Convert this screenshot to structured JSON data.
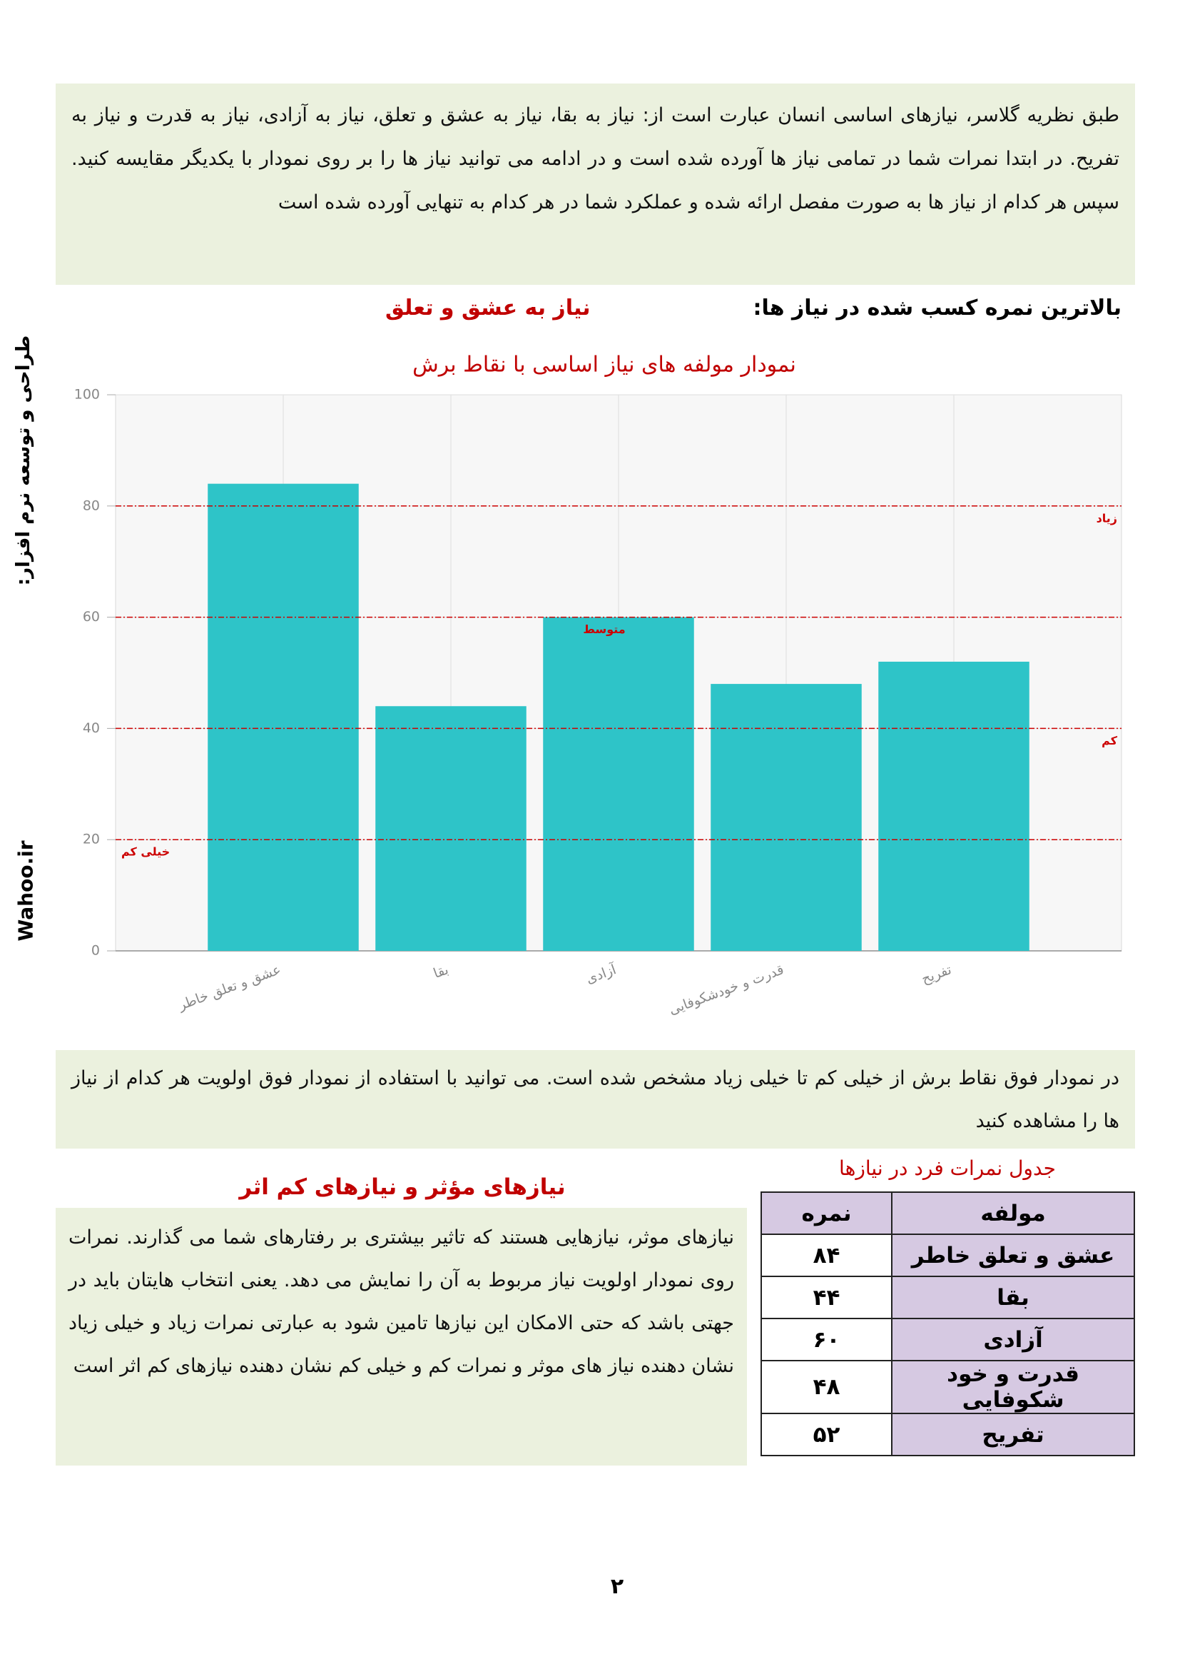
{
  "intro": "طبق نظریه گلاسر، نیازهای اساسی انسان عبارت است از: نیاز به بقا، نیاز به عشق و تعلق، نیاز به آزادی، نیاز به قدرت و نیاز به تفریح. در ابتدا نمرات شما در تمامی نیاز ها آورده شده است و در ادامه می توانید نیاز ها را بر روی نمودار با یکدیگر مقایسه کنید. سپس هر کدام از نیاز ها به صورت مفصل ارائه شده و عملکرد شما در هر کدام به تنهایی آورده شده است",
  "highest": {
    "label": "بالاترین نمره کسب شده در نیاز ها:",
    "value": "نیاز به عشق و تعلق"
  },
  "side": {
    "text": "طراحی و توسعه نرم افزار:",
    "site": "Wahoo.ir"
  },
  "chart_data": {
    "type": "bar",
    "title": "نمودار مولفه های نیاز اساسی با نقاط برش",
    "categories": [
      "عشق و تعلق خاطر",
      "بقا",
      "آزادی",
      "قدرت و خودشکوفایی",
      "تفریح"
    ],
    "values": [
      84,
      44,
      60,
      48,
      52
    ],
    "color": "#2ec4c8",
    "ylim": [
      0,
      100
    ],
    "yticks": [
      0,
      20,
      40,
      60,
      80,
      100
    ],
    "grid": true,
    "thresholds": [
      {
        "value": 20,
        "label": "خیلی کم"
      },
      {
        "value": 40,
        "label": "کم"
      },
      {
        "value": 60,
        "label": "متوسط"
      },
      {
        "value": 80,
        "label": "زیاد"
      }
    ],
    "threshold_color": "#cc0000"
  },
  "note": "در نمودار فوق نقاط برش از خیلی کم تا خیلی زیاد مشخص شده است. می توانید با استفاده از نمودار فوق اولویت هر کدام از نیاز ها را مشاهده کنید",
  "effective": {
    "title": "نیازهای مؤثر و نیازهای کم اثر",
    "text": "نیازهای موثر، نیازهایی هستند که تاثیر بیشتری بر رفتارهای شما می گذارند. نمرات روی نمودار اولویت نیاز مربوط به آن را نمایش می دهد. یعنی انتخاب هایتان باید در جهتی باشد که حتی الامکان این نیازها تامین شود به عبارتی نمرات زیاد و خیلی زیاد نشان دهنده نیاز های موثر و نمرات کم و خیلی کم نشان دهنده نیازهای کم اثر است"
  },
  "table": {
    "caption": "جدول نمرات فرد در نیازها",
    "header": [
      "مولفه",
      "نمره"
    ],
    "rows": [
      [
        "عشق و تعلق خاطر",
        "۸۴"
      ],
      [
        "بقا",
        "۴۴"
      ],
      [
        "آزادی",
        "۶۰"
      ],
      [
        "قدرت و خود شکوفایی",
        "۴۸"
      ],
      [
        "تفریح",
        "۵۲"
      ]
    ]
  },
  "page_number": "۲"
}
